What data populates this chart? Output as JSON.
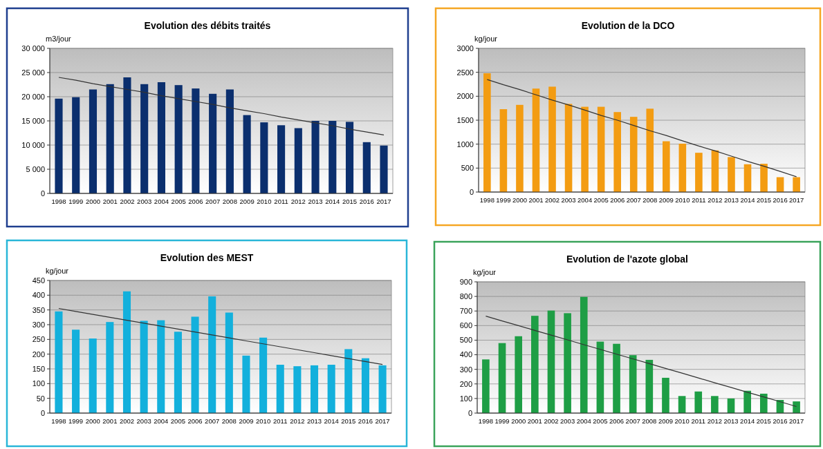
{
  "chart_data": [
    {
      "type": "bar",
      "title": "Evolution des débits traités",
      "ylabel": "m3/jour",
      "categories": [
        "1998",
        "1999",
        "2000",
        "2001",
        "2002",
        "2003",
        "2004",
        "2005",
        "2006",
        "2007",
        "2008",
        "2009",
        "2010",
        "2011",
        "2012",
        "2013",
        "2014",
        "2015",
        "2016",
        "2017"
      ],
      "series": [
        {
          "color": "#0b2f6e",
          "values": [
            19600,
            19900,
            21500,
            22600,
            24000,
            22600,
            23000,
            22400,
            21700,
            20600,
            21500,
            16200,
            14700,
            14100,
            13500,
            15000,
            15000,
            14800,
            10600,
            9900
          ]
        },
        {
          "type": "line",
          "color": "#333333",
          "values": [
            24000,
            23400,
            22700,
            22100,
            21500,
            20900,
            20200,
            19600,
            19000,
            18400,
            17700,
            17100,
            16500,
            15800,
            15200,
            14600,
            14000,
            13300,
            12700,
            12100
          ]
        }
      ],
      "ylim": [
        0,
        30000
      ],
      "yticks": [
        0,
        {
          "value": 5000,
          "label": "5 000"
        },
        {
          "value": 10000,
          "label": "10 000"
        },
        {
          "value": 15000,
          "label": "15 000"
        },
        {
          "value": 20000,
          "label": "20 000"
        },
        {
          "value": 25000,
          "label": "25 000"
        },
        {
          "value": 30000,
          "label": "30 000"
        }
      ],
      "grid": "y"
    },
    {
      "type": "bar",
      "title": "Evolution de la DCO",
      "ylabel": "kg/jour",
      "categories": [
        "1998",
        "1999",
        "2000",
        "2001",
        "2002",
        "2003",
        "2004",
        "2005",
        "2006",
        "2007",
        "2008",
        "2009",
        "2010",
        "2011",
        "2012",
        "2013",
        "2014",
        "2015",
        "2016",
        "2017"
      ],
      "series": [
        {
          "color": "#f39c12",
          "values": [
            2480,
            1730,
            1820,
            2160,
            2200,
            1840,
            1780,
            1780,
            1670,
            1570,
            1740,
            1060,
            1010,
            820,
            870,
            730,
            580,
            590,
            310,
            310
          ]
        },
        {
          "type": "line",
          "color": "#333333",
          "values": [
            2350,
            2240,
            2140,
            2030,
            1920,
            1820,
            1710,
            1600,
            1500,
            1390,
            1280,
            1180,
            1070,
            960,
            860,
            750,
            640,
            540,
            430,
            320
          ]
        }
      ],
      "ylim": [
        0,
        3000
      ],
      "yticks": [
        0,
        500,
        1000,
        1500,
        2000,
        2500,
        3000
      ],
      "grid": "y"
    },
    {
      "type": "bar",
      "title": "Evolution des MEST",
      "ylabel": "kg/jour",
      "categories": [
        "1998",
        "1999",
        "2000",
        "2001",
        "2002",
        "2003",
        "2004",
        "2005",
        "2006",
        "2007",
        "2008",
        "2009",
        "2010",
        "2011",
        "2012",
        "2013",
        "2014",
        "2015",
        "2016",
        "2017"
      ],
      "series": [
        {
          "color": "#13b0dc",
          "values": [
            345,
            283,
            253,
            309,
            413,
            313,
            315,
            276,
            327,
            396,
            341,
            195,
            256,
            164,
            159,
            162,
            164,
            217,
            186,
            162
          ]
        },
        {
          "type": "line",
          "color": "#333333",
          "values": [
            355,
            345,
            335,
            325,
            315,
            305,
            295,
            285,
            275,
            265,
            255,
            245,
            235,
            225,
            215,
            205,
            195,
            185,
            175,
            165
          ]
        }
      ],
      "ylim": [
        0,
        450
      ],
      "yticks": [
        0,
        50,
        100,
        150,
        200,
        250,
        300,
        350,
        400,
        450
      ],
      "grid": "y"
    },
    {
      "type": "bar",
      "title": "Evolution de l'azote global",
      "ylabel": "kg/jour",
      "categories": [
        "1998",
        "1999",
        "2000",
        "2001",
        "2002",
        "2003",
        "2004",
        "2005",
        "2006",
        "2007",
        "2008",
        "2009",
        "2010",
        "2011",
        "2012",
        "2013",
        "2014",
        "2015",
        "2016",
        "2017"
      ],
      "series": [
        {
          "color": "#1e9e45",
          "values": [
            368,
            480,
            527,
            667,
            703,
            685,
            797,
            490,
            475,
            397,
            365,
            242,
            117,
            148,
            117,
            100,
            153,
            133,
            90,
            80
          ]
        },
        {
          "type": "line",
          "color": "#333333",
          "values": [
            665,
            632,
            600,
            567,
            535,
            502,
            469,
            437,
            404,
            372,
            339,
            306,
            274,
            241,
            208,
            176,
            143,
            111,
            78,
            45
          ]
        }
      ],
      "ylim": [
        0,
        900
      ],
      "yticks": [
        0,
        100,
        200,
        300,
        400,
        500,
        600,
        700,
        800,
        900
      ],
      "grid": "y"
    }
  ]
}
